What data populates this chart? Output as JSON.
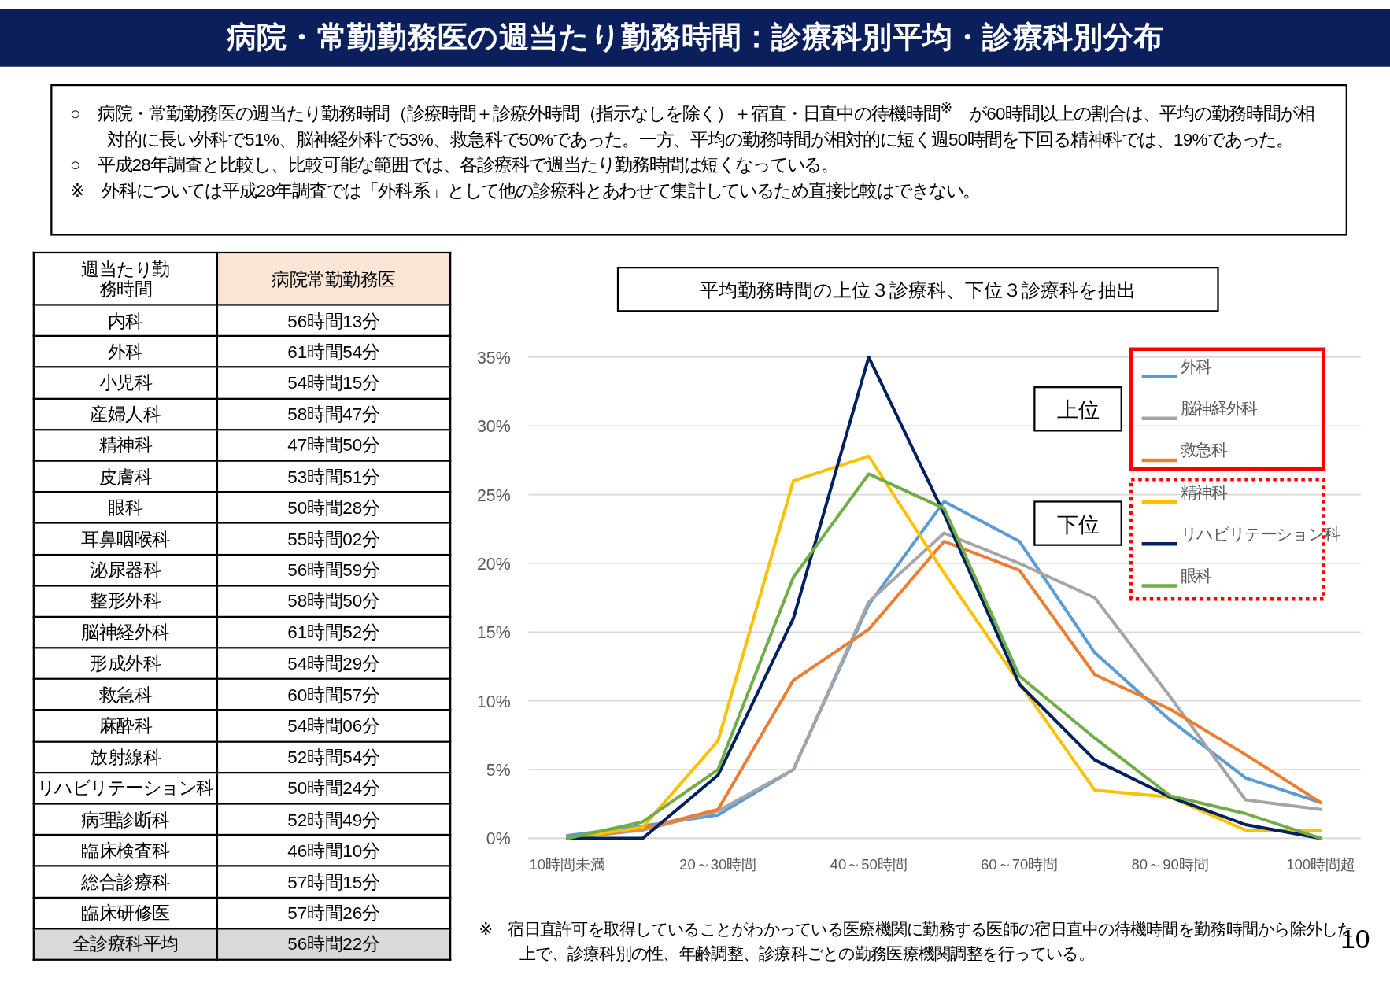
{
  "chart_data": [
    {
      "type": "other",
      "title": "病院・常勤勤務医の週当たり勤務時間：診療科別平均・診療科別分布",
      "annotations": [
        "○　病院・常勤勤務医の週当たり勤務時間（診療時間＋診療外時間（指示なしを除く）＋宿直・日直中の待機時間$^{※}$　が60時間以上の割合は、平均の勤務時間が相対的に長い外科で51%、脳神経外科で53%、救急科で50%であった。一方、平均の勤務時間が相対的に短く週50時間を下回る精神科では、19%であった。",
        "○　平成28年調査と比較し、比較可能な範囲では、各診療科で週当たり勤務時間は短くなっている。",
        "※　外科については平成28年調査では「外科系」として他の診療科とあわせて集計しているため直接比較はできない。",
        "10"
      ]
    },
    {
      "type": "other",
      "title": "週当たり勤務時間",
      "subtitle": "病院常勤勤務医",
      "categories": [
        "内科",
        "外科",
        "小児科",
        "産婦人科",
        "精神科",
        "皮膚科",
        "眼科",
        "耳鼻咽喉科",
        "泌尿器科",
        "整形外科",
        "脳神経外科",
        "形成外科",
        "救急科",
        "麻酔科",
        "放射線科",
        "リハビリテーション科",
        "病理診断科",
        "臨床検査科",
        "総合診療科",
        "臨床研修医",
        "全診療科平均"
      ],
      "value_labels": [
        "56時間13分",
        "61時間54分",
        "54時間15分",
        "58時間47分",
        "47時間50分",
        "53時間51分",
        "50時間28分",
        "55時間02分",
        "56時間59分",
        "58時間50分",
        "61時間52分",
        "54時間29分",
        "60時間57分",
        "54時間06分",
        "52時間54分",
        "50時間24分",
        "52時間49分",
        "46時間10分",
        "57時間15分",
        "57時間26分",
        "56時間22分"
      ]
    },
    {
      "type": "line",
      "title": "平均勤務時間の上位３診療科、下位３診療科を抽出",
      "categories": [
        "10時間未満",
        null,
        "20～30時間",
        null,
        "40～50時間",
        null,
        "60～70時間",
        null,
        "80～90時間",
        null,
        "100時間超"
      ],
      "ylim": [
        0,
        35
      ],
      "yticks": [
        {
          "value": 0,
          "label": "0%"
        },
        {
          "value": 5,
          "label": "5%"
        },
        {
          "value": 10,
          "label": "10%"
        },
        {
          "value": 15,
          "label": "15%"
        },
        {
          "value": 20,
          "label": "20%"
        },
        {
          "value": 25,
          "label": "25%"
        },
        {
          "value": 30,
          "label": "30%"
        },
        {
          "value": 35,
          "label": "35%"
        }
      ],
      "grid": "y",
      "legend": "top right",
      "series": [
        {
          "name": "外科",
          "color": "#5b9bd5",
          "values": [
            0.2,
            0.9,
            1.7,
            5.0,
            17.0,
            24.5,
            21.6,
            13.5,
            8.6,
            4.4,
            2.6
          ]
        },
        {
          "name": "脳神経外科",
          "color": "#a5a5a5",
          "values": [
            0,
            0.6,
            2.0,
            5.0,
            17.2,
            22.2,
            20.0,
            17.5,
            10.3,
            2.8,
            2.1
          ]
        },
        {
          "name": "救急科",
          "color": "#ed7d31",
          "values": [
            0,
            0.7,
            2.1,
            11.5,
            15.2,
            21.6,
            19.5,
            11.9,
            9.4,
            6.1,
            2.6
          ]
        },
        {
          "name": "精神科",
          "color": "#ffc000",
          "values": [
            0,
            0.8,
            7.1,
            26.0,
            27.8,
            19.3,
            11.3,
            3.5,
            3.0,
            0.6,
            0.6
          ]
        },
        {
          "name": "リハビリテーション科",
          "color": "#002060",
          "values": [
            0,
            0,
            4.6,
            16.0,
            35.0,
            23.6,
            11.2,
            5.7,
            3.0,
            1.0,
            0
          ]
        },
        {
          "name": "眼科",
          "color": "#70ad47",
          "values": [
            0,
            1.2,
            5.0,
            19.0,
            26.5,
            24.0,
            11.8,
            7.3,
            3.1,
            1.8,
            0
          ]
        }
      ],
      "annotations": [
        "上位",
        "下位",
        "※　宿日直許可を取得していることがわかっている医療機関に勤務する医師の宿日直中の待機時間を勤務時間から除外した上で、診療科別の性、年齢調整、診療科ごとの勤務医療機関調整を行っている。"
      ]
    }
  ]
}
